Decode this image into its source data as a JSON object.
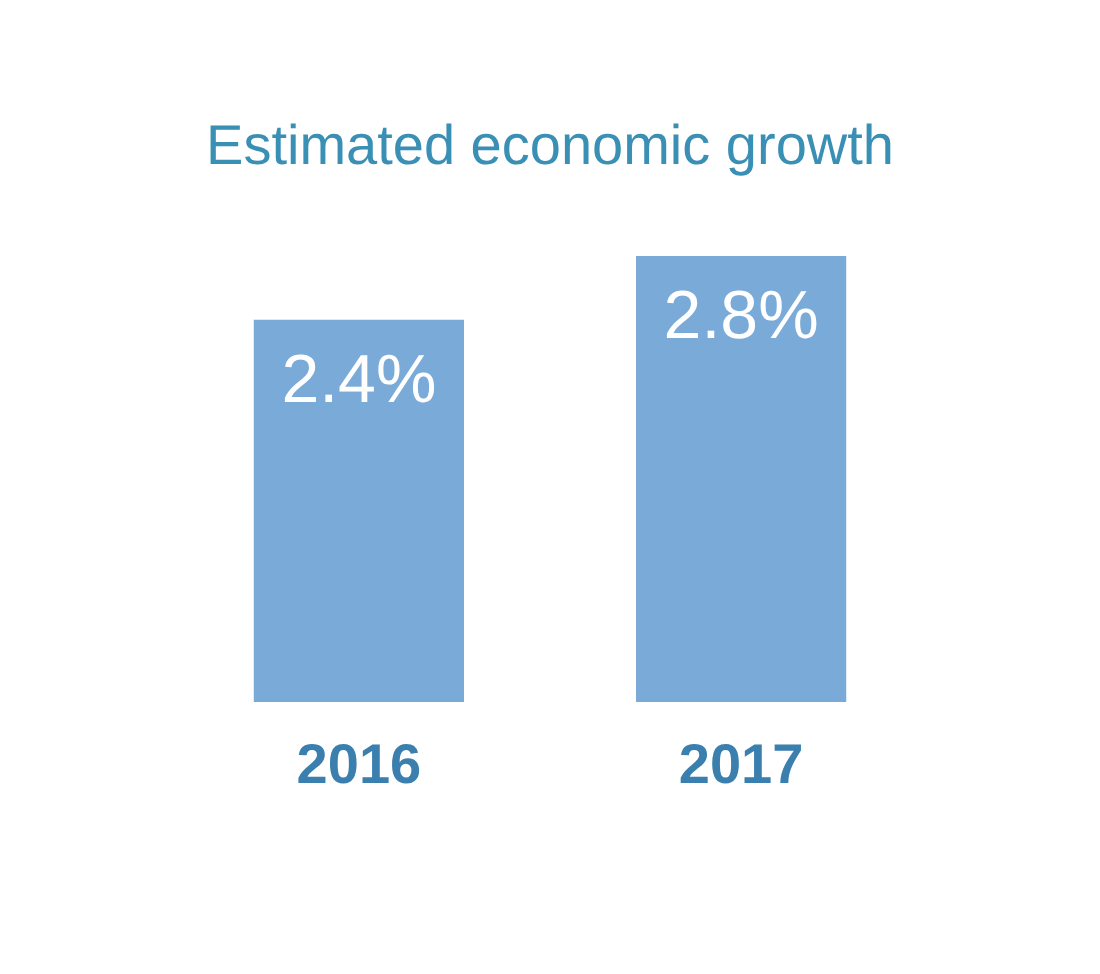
{
  "chart_data": {
    "type": "bar",
    "title": "Estimated economic growth",
    "categories": [
      "2016",
      "2017"
    ],
    "values": [
      2.4,
      2.8
    ],
    "value_labels": [
      "2.4%",
      "2.8%"
    ],
    "color": "#7aaad8"
  }
}
